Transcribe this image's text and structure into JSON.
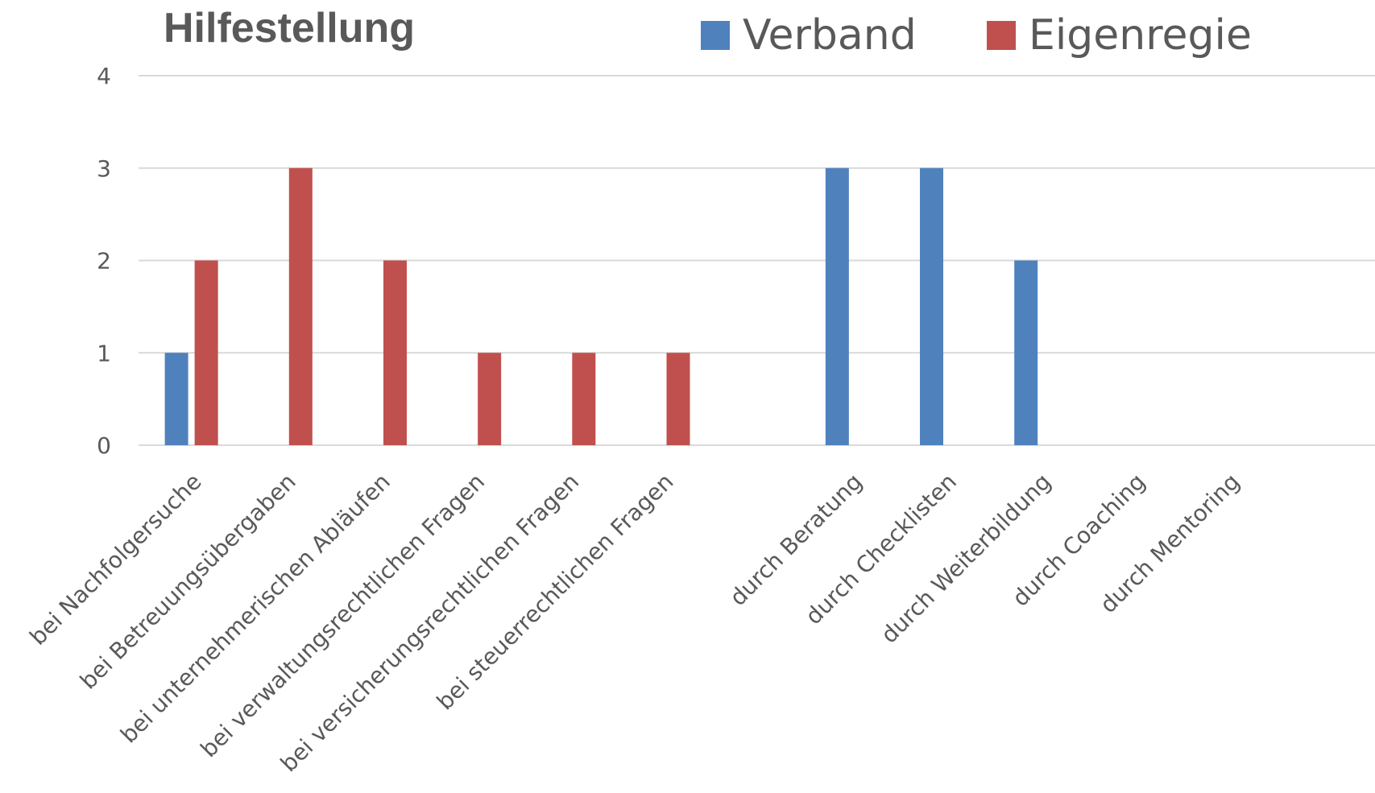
{
  "chart_data": {
    "type": "bar",
    "title": "Hilfestellung",
    "xlabel": "",
    "ylabel": "",
    "ylim": [
      0,
      4
    ],
    "yticks": [
      0,
      1,
      2,
      3,
      4
    ],
    "grid": true,
    "legend_position": "top-right",
    "categories": [
      "bei Nachfolgersuche",
      "bei Betreuungsübergaben",
      "bei unternehmerischen Abläufen",
      "bei verwaltungsrechtlichen Fragen",
      "bei versicherungsrechtlichen Fragen",
      "bei steuerrechtlichen Fragen",
      "",
      "durch Beratung",
      "durch Checklisten",
      "durch Weiterbildung",
      "durch Coaching",
      "durch Mentoring"
    ],
    "series": [
      {
        "name": "Verband",
        "color": "#4f81bd",
        "values": [
          1,
          0,
          0,
          0,
          0,
          0,
          0,
          3,
          3,
          2,
          0,
          0
        ]
      },
      {
        "name": "Eigenregie",
        "color": "#c0504d",
        "values": [
          2,
          3,
          2,
          1,
          1,
          1,
          0,
          0,
          0,
          0,
          0,
          0
        ]
      }
    ]
  }
}
